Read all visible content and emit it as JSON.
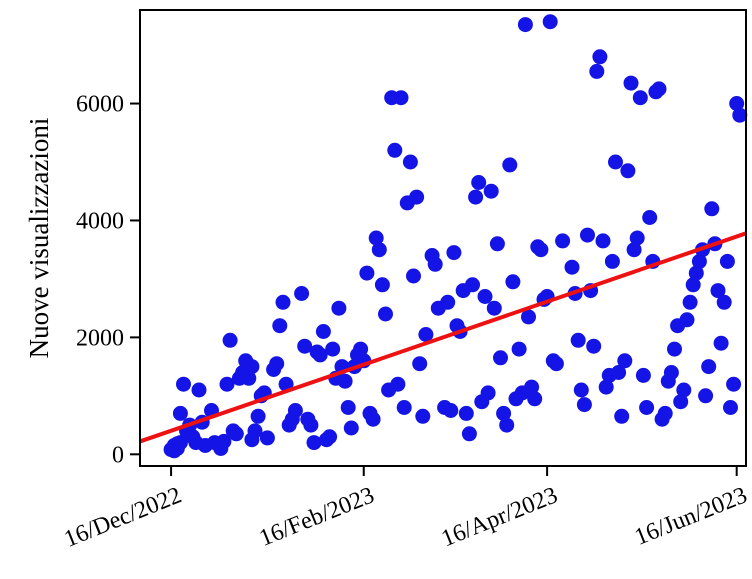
{
  "chart_data": {
    "type": "scatter",
    "title": "",
    "xlabel": "",
    "ylabel": "Nuove visualizzazioni",
    "x_axis_type": "date",
    "xlim": [
      "2022-12-06",
      "2023-06-19"
    ],
    "ylim": [
      -200,
      7600
    ],
    "x_ticks": [
      "2022-12-16",
      "2023-02-16",
      "2023-04-16",
      "2023-06-16"
    ],
    "x_tick_labels": [
      "16/Dec/2022",
      "16/Feb/2023",
      "16/Apr/2023",
      "16/Jun/2023"
    ],
    "y_ticks": [
      0,
      2000,
      4000,
      6000
    ],
    "y_tick_labels": [
      "0",
      "2000",
      "4000",
      "6000"
    ],
    "grid": false,
    "legend": "none",
    "colors": {
      "points": "#1414e6",
      "trend": "#ee1111",
      "axes": "#000000"
    },
    "series": [
      {
        "x": [
          "2022-12-16",
          "2022-12-17",
          "2022-12-17",
          "2022-12-18",
          "2022-12-18",
          "2022-12-19",
          "2022-12-19",
          "2022-12-20",
          "2022-12-21",
          "2022-12-22",
          "2022-12-23",
          "2022-12-24",
          "2022-12-25",
          "2022-12-26",
          "2022-12-27",
          "2022-12-29",
          "2022-12-30",
          "2022-12-31",
          "2023-01-01",
          "2023-01-02",
          "2023-01-03",
          "2023-01-04",
          "2023-01-05",
          "2023-01-06",
          "2023-01-07",
          "2023-01-08",
          "2023-01-09",
          "2023-01-10",
          "2023-01-11",
          "2023-01-11",
          "2023-01-12",
          "2023-01-13",
          "2023-01-14",
          "2023-01-15",
          "2023-01-16",
          "2023-01-18",
          "2023-01-19",
          "2023-01-20",
          "2023-01-21",
          "2023-01-22",
          "2023-01-23",
          "2023-01-24",
          "2023-01-25",
          "2023-01-27",
          "2023-01-28",
          "2023-01-29",
          "2023-01-30",
          "2023-01-31",
          "2023-02-01",
          "2023-02-02",
          "2023-02-03",
          "2023-02-04",
          "2023-02-05",
          "2023-02-06",
          "2023-02-07",
          "2023-02-08",
          "2023-02-09",
          "2023-02-10",
          "2023-02-11",
          "2023-02-12",
          "2023-02-13",
          "2023-02-14",
          "2023-02-15",
          "2023-02-16",
          "2023-02-17",
          "2023-02-18",
          "2023-02-19",
          "2023-02-20",
          "2023-02-21",
          "2023-02-22",
          "2023-02-23",
          "2023-02-24",
          "2023-02-25",
          "2023-02-26",
          "2023-02-27",
          "2023-02-28",
          "2023-03-01",
          "2023-03-02",
          "2023-03-03",
          "2023-03-04",
          "2023-03-05",
          "2023-03-06",
          "2023-03-07",
          "2023-03-08",
          "2023-03-10",
          "2023-03-11",
          "2023-03-12",
          "2023-03-14",
          "2023-03-15",
          "2023-03-16",
          "2023-03-17",
          "2023-03-18",
          "2023-03-19",
          "2023-03-20",
          "2023-03-21",
          "2023-03-22",
          "2023-03-23",
          "2023-03-24",
          "2023-03-25",
          "2023-03-26",
          "2023-03-27",
          "2023-03-28",
          "2023-03-29",
          "2023-03-30",
          "2023-03-31",
          "2023-04-01",
          "2023-04-02",
          "2023-04-03",
          "2023-04-04",
          "2023-04-05",
          "2023-04-06",
          "2023-04-07",
          "2023-04-08",
          "2023-04-09",
          "2023-04-10",
          "2023-04-11",
          "2023-04-12",
          "2023-04-13",
          "2023-04-14",
          "2023-04-15",
          "2023-04-16",
          "2023-04-17",
          "2023-04-18",
          "2023-04-19",
          "2023-04-21",
          "2023-04-24",
          "2023-04-25",
          "2023-04-26",
          "2023-04-27",
          "2023-04-28",
          "2023-04-29",
          "2023-04-30",
          "2023-05-01",
          "2023-05-02",
          "2023-05-03",
          "2023-05-04",
          "2023-05-05",
          "2023-05-06",
          "2023-05-07",
          "2023-05-08",
          "2023-05-09",
          "2023-05-10",
          "2023-05-11",
          "2023-05-12",
          "2023-05-13",
          "2023-05-14",
          "2023-05-15",
          "2023-05-16",
          "2023-05-17",
          "2023-05-18",
          "2023-05-19",
          "2023-05-20",
          "2023-05-21",
          "2023-05-22",
          "2023-05-23",
          "2023-05-24",
          "2023-05-25",
          "2023-05-26",
          "2023-05-27",
          "2023-05-28",
          "2023-05-29",
          "2023-05-30",
          "2023-05-31",
          "2023-06-01",
          "2023-06-02",
          "2023-06-03",
          "2023-06-04",
          "2023-06-05",
          "2023-06-06",
          "2023-06-07",
          "2023-06-08",
          "2023-06-09",
          "2023-06-10",
          "2023-06-11",
          "2023-06-12",
          "2023-06-13",
          "2023-06-14",
          "2023-06-15",
          "2023-06-16",
          "2023-06-17"
        ],
        "y": [
          80,
          150,
          60,
          100,
          180,
          200,
          700,
          1200,
          400,
          500,
          300,
          200,
          1100,
          550,
          150,
          750,
          200,
          180,
          100,
          220,
          1200,
          1950,
          400,
          350,
          1300,
          1400,
          1600,
          1300,
          1500,
          250,
          400,
          650,
          1000,
          1050,
          280,
          1450,
          1550,
          2200,
          2600,
          1200,
          500,
          600,
          750,
          2750,
          1850,
          600,
          500,
          200,
          1750,
          1700,
          2100,
          250,
          300,
          1800,
          1300,
          2500,
          1500,
          1250,
          800,
          450,
          1500,
          1700,
          1800,
          1600,
          3100,
          700,
          600,
          3700,
          3500,
          2900,
          2400,
          1100,
          6100,
          5200,
          1200,
          6100,
          800,
          4300,
          5000,
          3050,
          4400,
          1550,
          650,
          2050,
          3400,
          3250,
          2500,
          800,
          2600,
          750,
          3450,
          2200,
          2100,
          2800,
          700,
          350,
          2900,
          4400,
          4650,
          900,
          2700,
          1050,
          4500,
          2500,
          3600,
          1650,
          700,
          500,
          4950,
          2950,
          950,
          1800,
          1050,
          7350,
          2350,
          1150,
          950,
          3550,
          3500,
          2650,
          2700,
          7400,
          1600,
          1550,
          3650,
          3200,
          2750,
          1950,
          1100,
          850,
          3750,
          2800,
          1850,
          6550,
          6800,
          3650,
          1150,
          1350,
          3300,
          5000,
          1400,
          650,
          1600,
          4850,
          6350,
          3500,
          3700,
          6100,
          1350,
          800,
          4050,
          3300,
          6200,
          6250,
          600,
          700,
          1250,
          1400,
          1800,
          2200,
          900,
          1100,
          2300,
          2600,
          2900,
          3100,
          3300,
          3500,
          1000,
          1500,
          4200,
          3600,
          2800,
          1900,
          2600,
          3300,
          800,
          1200,
          6000,
          5800
        ]
      }
    ],
    "trendline": {
      "x": [
        "2022-12-06",
        "2023-06-19"
      ],
      "y": [
        220,
        3780
      ]
    }
  }
}
